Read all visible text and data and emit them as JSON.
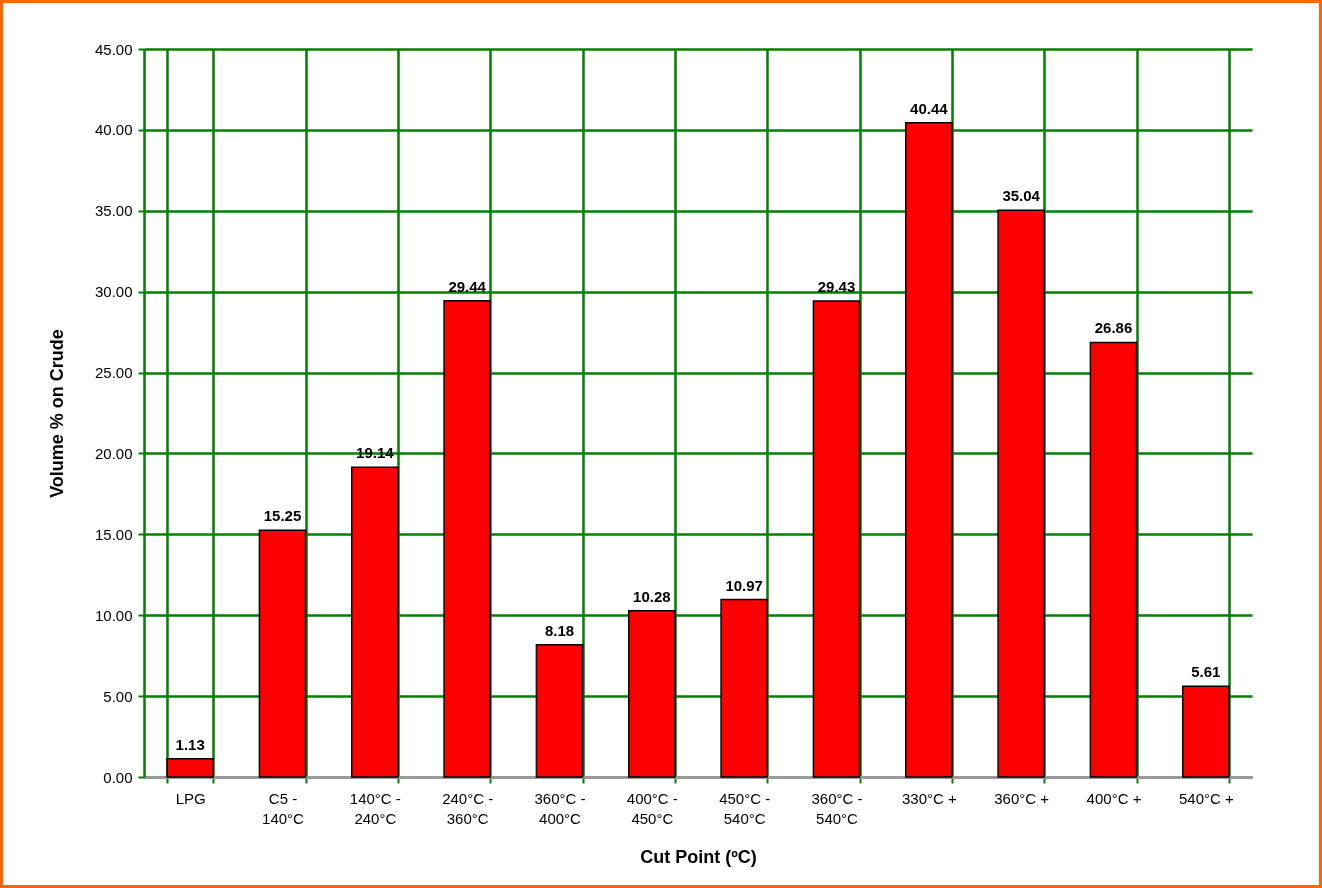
{
  "chart_data": {
    "type": "bar",
    "xlabel": "Cut Point (ºC)",
    "ylabel": "Volume % on Crude",
    "categories": [
      "LPG",
      "C5 - 140°C",
      "140°C - 240°C",
      "240°C - 360°C",
      "360°C - 400°C",
      "400°C - 450°C",
      "450°C - 540°C",
      "360°C - 540°C",
      "330°C +",
      "360°C +",
      "400°C +",
      "540°C +"
    ],
    "values": [
      1.13,
      15.25,
      19.14,
      29.44,
      8.18,
      10.28,
      10.97,
      29.43,
      40.44,
      35.04,
      26.86,
      5.61
    ],
    "color": "#ff0000",
    "ylim": [
      0,
      45
    ],
    "yticks": [
      {
        "value": 0,
        "label": "0.00"
      },
      {
        "value": 5,
        "label": "5.00"
      },
      {
        "value": 10,
        "label": "10.00"
      },
      {
        "value": 15,
        "label": "15.00"
      },
      {
        "value": 20,
        "label": "20.00"
      },
      {
        "value": 25,
        "label": "25.00"
      },
      {
        "value": 30,
        "label": "30.00"
      },
      {
        "value": 35,
        "label": "35.00"
      },
      {
        "value": 40,
        "label": "40.00"
      },
      {
        "value": 45,
        "label": "45.00"
      }
    ],
    "grid": true,
    "data_labels": true
  }
}
